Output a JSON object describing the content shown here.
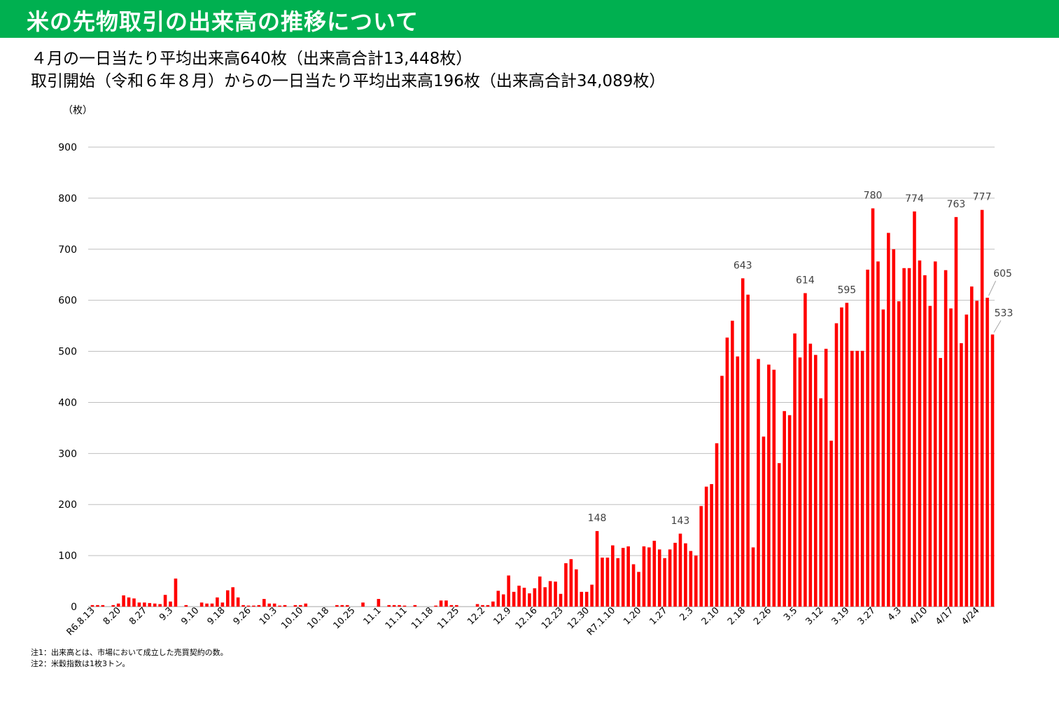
{
  "header": {
    "title": "米の先物取引の出来高の推移について",
    "line1": "４月の一日当たり平均出来高640枚（出来高合計13,448枚）",
    "line2": "取引開始（令和６年８月）からの一日当たり平均出来高196枚（出来高合計34,089枚）"
  },
  "notes": [
    "注1：出来高とは、市場において成立した売買契約の数。",
    "注2：米穀指数は1枚3トン。"
  ],
  "colors": {
    "banner": "#00b050",
    "bar": "#ff0000",
    "grid": "#bfbfbf"
  },
  "chart_data": {
    "type": "bar",
    "ylabel": "（枚）",
    "ylim": [
      0,
      900
    ],
    "yticks": [
      0,
      100,
      200,
      300,
      400,
      500,
      600,
      700,
      800,
      900
    ],
    "grid": true,
    "legend": "none",
    "xtick_labels": [
      {
        "i": 0,
        "label": "R6.8.13"
      },
      {
        "i": 5,
        "label": "8.20"
      },
      {
        "i": 10,
        "label": "8.27"
      },
      {
        "i": 15,
        "label": "9.3"
      },
      {
        "i": 20,
        "label": "9.10"
      },
      {
        "i": 25,
        "label": "9.18"
      },
      {
        "i": 30,
        "label": "9.26"
      },
      {
        "i": 35,
        "label": "10.3"
      },
      {
        "i": 40,
        "label": "10.10"
      },
      {
        "i": 45,
        "label": "10.18"
      },
      {
        "i": 50,
        "label": "10.25"
      },
      {
        "i": 55,
        "label": "11.1"
      },
      {
        "i": 60,
        "label": "11.11"
      },
      {
        "i": 65,
        "label": "11.18"
      },
      {
        "i": 70,
        "label": "11.25"
      },
      {
        "i": 75,
        "label": "12.2"
      },
      {
        "i": 80,
        "label": "12.9"
      },
      {
        "i": 85,
        "label": "12.16"
      },
      {
        "i": 90,
        "label": "12.23"
      },
      {
        "i": 95,
        "label": "12.30"
      },
      {
        "i": 100,
        "label": "R7.1.10"
      },
      {
        "i": 105,
        "label": "1.20"
      },
      {
        "i": 110,
        "label": "1.27"
      },
      {
        "i": 115,
        "label": "2.3"
      },
      {
        "i": 120,
        "label": "2.10"
      },
      {
        "i": 125,
        "label": "2.18"
      },
      {
        "i": 130,
        "label": "2.26"
      },
      {
        "i": 135,
        "label": "3.5"
      },
      {
        "i": 140,
        "label": "3.12"
      },
      {
        "i": 145,
        "label": "3.19"
      },
      {
        "i": 150,
        "label": "3.27"
      },
      {
        "i": 155,
        "label": "4.3"
      },
      {
        "i": 160,
        "label": "4/10"
      },
      {
        "i": 165,
        "label": "4/17"
      },
      {
        "i": 170,
        "label": "4/24"
      }
    ],
    "values": [
      3,
      3,
      3,
      0,
      3,
      6,
      22,
      18,
      16,
      8,
      8,
      7,
      6,
      5,
      23,
      10,
      55,
      0,
      3,
      0,
      0,
      8,
      6,
      6,
      18,
      8,
      32,
      38,
      18,
      3,
      2,
      2,
      3,
      15,
      6,
      6,
      2,
      3,
      0,
      3,
      3,
      6,
      0,
      0,
      0,
      0,
      0,
      3,
      3,
      3,
      0,
      0,
      8,
      0,
      0,
      15,
      0,
      3,
      3,
      3,
      2,
      0,
      3,
      0,
      0,
      0,
      2,
      12,
      12,
      3,
      3,
      0,
      0,
      0,
      5,
      3,
      3,
      10,
      31,
      24,
      61,
      29,
      41,
      37,
      26,
      36,
      59,
      38,
      50,
      49,
      25,
      85,
      93,
      73,
      29,
      29,
      43,
      148,
      96,
      96,
      120,
      95,
      115,
      118,
      83,
      68,
      118,
      116,
      129,
      112,
      95,
      112,
      125,
      143,
      124,
      109,
      100,
      197,
      235,
      240,
      320,
      452,
      527,
      560,
      490,
      643,
      611,
      116,
      485,
      333,
      474,
      464,
      281,
      383,
      375,
      535,
      488,
      614,
      515,
      493,
      408,
      505,
      325,
      555,
      586,
      595,
      501,
      501,
      501,
      660,
      780,
      676,
      582,
      732,
      700,
      598,
      663,
      663,
      774,
      678,
      649,
      589,
      676,
      487,
      659,
      584,
      763,
      516,
      572,
      627,
      599,
      777,
      605,
      533
    ],
    "annotations": [
      {
        "i": 97,
        "label": "148"
      },
      {
        "i": 113,
        "label": "143"
      },
      {
        "i": 125,
        "label": "643"
      },
      {
        "i": 137,
        "label": "614"
      },
      {
        "i": 145,
        "label": "595"
      },
      {
        "i": 150,
        "label": "780"
      },
      {
        "i": 158,
        "label": "774"
      },
      {
        "i": 166,
        "label": "763"
      },
      {
        "i": 171,
        "label": "777"
      },
      {
        "i": 172,
        "label": "605"
      },
      {
        "i": 173,
        "label": "533"
      }
    ]
  }
}
